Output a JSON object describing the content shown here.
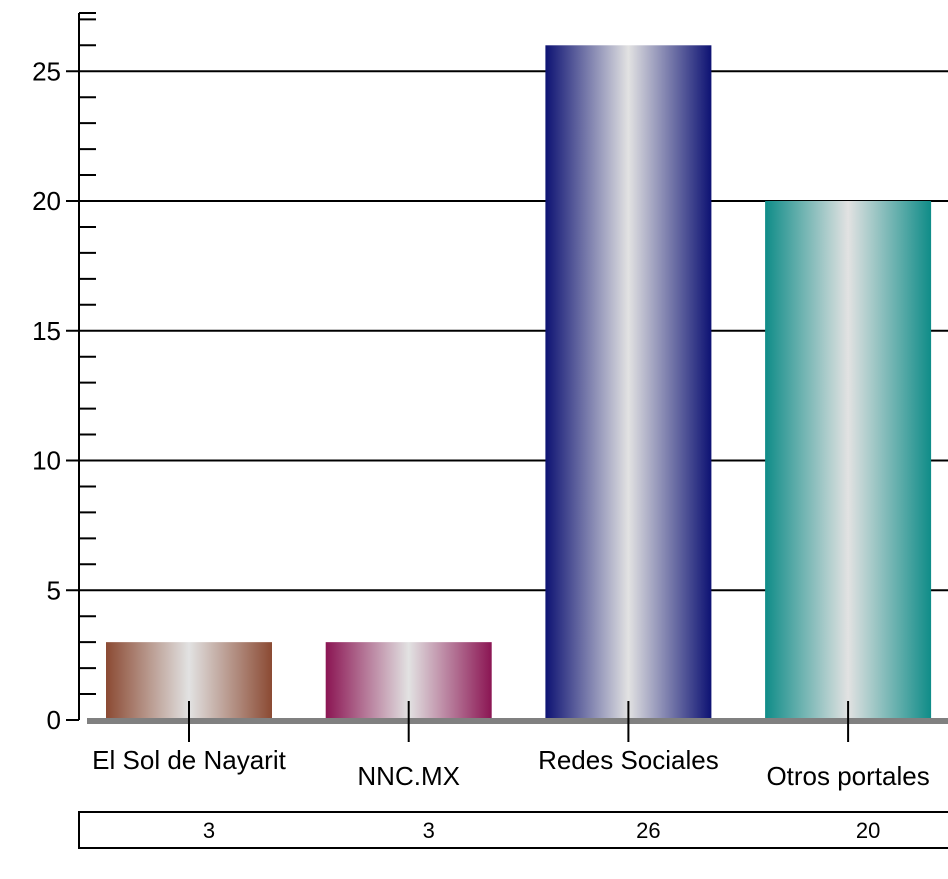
{
  "chart_data": {
    "type": "bar",
    "categories": [
      "El Sol de Nayarit",
      "NNC.MX",
      "Redes Sociales",
      "Otros portales"
    ],
    "values": [
      3,
      3,
      26,
      20
    ],
    "colors": [
      "#8b4a33",
      "#8b1553",
      "#0d1273",
      "#0f8c88"
    ],
    "highlight_color": "#e2e2e2",
    "baseline_color": "#808080",
    "ylim": [
      0,
      27
    ],
    "yticks": [
      0,
      5,
      10,
      15,
      20,
      25
    ],
    "minor_tick_step": 1,
    "grid": true,
    "table_values": [
      "3",
      "3",
      "26",
      "20"
    ],
    "title": "",
    "xlabel": "",
    "ylabel": ""
  }
}
